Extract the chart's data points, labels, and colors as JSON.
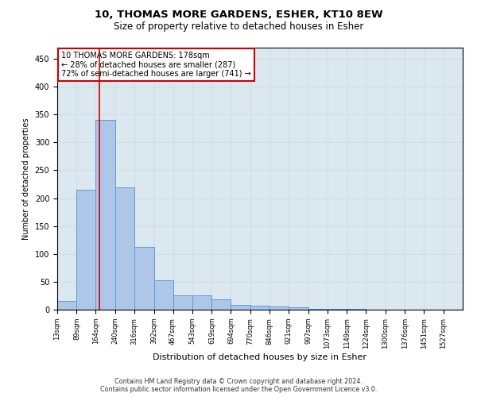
{
  "title": "10, THOMAS MORE GARDENS, ESHER, KT10 8EW",
  "subtitle": "Size of property relative to detached houses in Esher",
  "xlabel": "Distribution of detached houses by size in Esher",
  "ylabel": "Number of detached properties",
  "annotation_line1": "10 THOMAS MORE GARDENS: 178sqm",
  "annotation_line2": "← 28% of detached houses are smaller (287)",
  "annotation_line3": "72% of semi-detached houses are larger (741) →",
  "property_size": 178,
  "bin_edges": [
    13,
    89,
    164,
    240,
    316,
    392,
    467,
    543,
    619,
    694,
    770,
    846,
    921,
    997,
    1073,
    1149,
    1224,
    1300,
    1376,
    1451,
    1527,
    1603
  ],
  "bar_heights": [
    15,
    215,
    340,
    220,
    112,
    52,
    26,
    26,
    18,
    8,
    7,
    5,
    4,
    2,
    1,
    1,
    0,
    0,
    0,
    0,
    0
  ],
  "bar_color": "#aec6e8",
  "bar_edge_color": "#5b9bd5",
  "vline_color": "#cc0000",
  "vline_x": 178,
  "ylim": [
    0,
    470
  ],
  "yticks": [
    0,
    50,
    100,
    150,
    200,
    250,
    300,
    350,
    400,
    450
  ],
  "background_color": "#ffffff",
  "grid_color": "#d0dce8",
  "footer_line1": "Contains HM Land Registry data © Crown copyright and database right 2024.",
  "footer_line2": "Contains public sector information licensed under the Open Government Licence v3.0.",
  "title_fontsize": 9.5,
  "subtitle_fontsize": 8.5,
  "annotation_box_color": "#ffffff",
  "annotation_box_edge": "#cc0000",
  "ax_facecolor": "#dce8f0"
}
